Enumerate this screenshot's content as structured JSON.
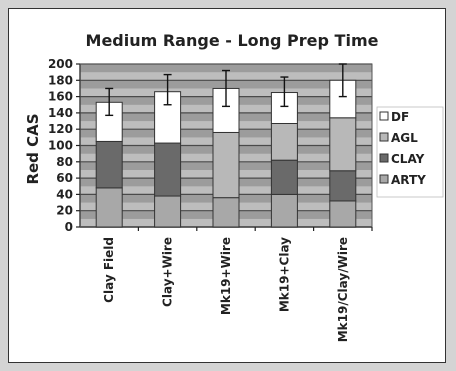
{
  "chart_data": {
    "type": "bar",
    "stacked": true,
    "title": "Medium Range - Long Prep Time",
    "ylabel": "Red CAS",
    "xlabel": "",
    "ylim": [
      0,
      200
    ],
    "yticks": [
      0,
      20,
      40,
      60,
      80,
      100,
      120,
      140,
      160,
      180,
      200
    ],
    "grid": true,
    "legend_position": "right",
    "categories": [
      "Clay Field",
      "Clay+Wire",
      "Mk19+Wire",
      "Mk19+Clay",
      "Mk19/Clay/Wire"
    ],
    "series": [
      {
        "name": "ARTY",
        "color": "#a8a8a8",
        "values": [
          48,
          38,
          36,
          40,
          32
        ]
      },
      {
        "name": "CLAY",
        "color": "#6a6a6a",
        "values": [
          57,
          65,
          0,
          42,
          37
        ]
      },
      {
        "name": "AGL",
        "color": "#b8b8b8",
        "values": [
          0,
          0,
          80,
          45,
          65
        ]
      },
      {
        "name": "DF",
        "color": "#ffffff",
        "values": [
          48,
          63,
          54,
          38,
          46
        ]
      }
    ],
    "error_bars": [
      {
        "low": 137,
        "high": 170
      },
      {
        "low": 150,
        "high": 187
      },
      {
        "low": 148,
        "high": 192
      },
      {
        "low": 148,
        "high": 184
      },
      {
        "low": 160,
        "high": 200
      }
    ]
  }
}
